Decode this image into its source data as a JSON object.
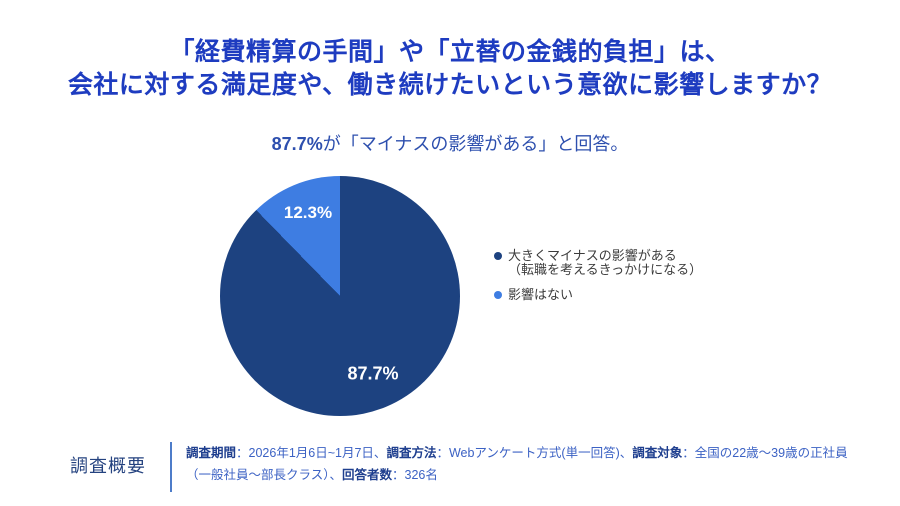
{
  "title": {
    "line1": "「経費精算の手間」や「立替の金銭的負担」は、",
    "line2": "会社に対する満足度や、働き続けたいという意欲に影響しますか？"
  },
  "subtitle": {
    "percent": "87.7%",
    "rest": "が「マイナスの影響がある」と回答。"
  },
  "chart_data": {
    "type": "pie",
    "title": "87.7%が「マイナスの影響がある」と回答。",
    "labels": [
      "大きくマイナスの影響がある（転職を考えるきっかけになる）",
      "影響はない"
    ],
    "values": [
      87.7,
      12.3
    ],
    "slice_labels": [
      "87.7%",
      "12.3%"
    ],
    "colors": [
      "#1d4280",
      "#3e7de2"
    ],
    "slice_label_color": "#ffffff",
    "legend_position": "right",
    "start_angle_deg": 0,
    "direction": "clockwise"
  },
  "legend": {
    "items": [
      {
        "line1": "大きくマイナスの影響がある",
        "line2": "（転職を考えるきっかけになる）"
      },
      {
        "line1": "影響はない",
        "line2": ""
      }
    ]
  },
  "survey": {
    "heading": "調査概要",
    "segments": [
      {
        "bold": true,
        "text": "調査期間"
      },
      {
        "bold": false,
        "text": "：2026年1月6日~1月7日、"
      },
      {
        "bold": true,
        "text": "調査方法"
      },
      {
        "bold": false,
        "text": "：Webアンケート方式(単一回答)、"
      },
      {
        "bold": true,
        "text": "調査対象"
      },
      {
        "bold": false,
        "text": "：全国の22歳～39歳の正社員（一般社員～部長クラス）、"
      },
      {
        "bold": true,
        "text": "回答者数"
      },
      {
        "bold": false,
        "text": "：326名"
      }
    ]
  },
  "colors": {
    "title_text": "#1e3cc0",
    "subtitle_text": "#2d4fae",
    "pie_major": "#1d4280",
    "pie_minor": "#3e7de2",
    "legend_text": "#3c3c3c",
    "footer_heading": "#24427f",
    "footer_key": "#1f3f8f",
    "footer_value": "#3c62c4",
    "footer_divider": "#4d7cc9",
    "background": "#ffffff"
  }
}
